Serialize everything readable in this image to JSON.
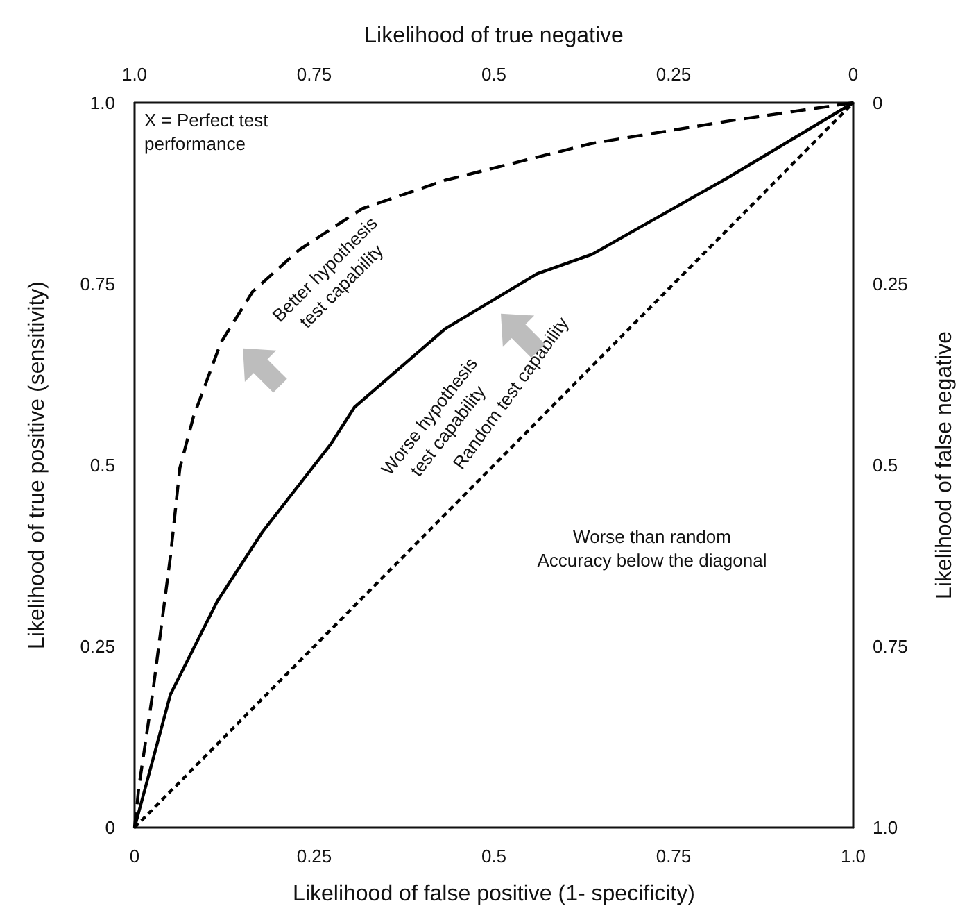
{
  "chart_data": {
    "type": "line",
    "xlabel": "Likelihood of false positive (1- specificity)",
    "ylabel": "Likelihood of true positive (sensitivity)",
    "x2label": "Likelihood of true negative",
    "y2label": "Likelihood of false negative",
    "xlim": [
      0,
      1
    ],
    "xticks": [
      0,
      0.25,
      0.5,
      0.75,
      {
        "value": 1,
        "label": "1.0"
      }
    ],
    "ylim": [
      0,
      1
    ],
    "yticks": [
      0,
      0.25,
      0.5,
      0.75,
      {
        "value": 1,
        "label": "1.0"
      }
    ],
    "x2lim": [
      1,
      0
    ],
    "x2ticks": [
      {
        "value": 1,
        "label": "1.0"
      },
      0.75,
      0.5,
      0.25,
      0
    ],
    "y2lim": [
      1,
      0
    ],
    "y2ticks": [
      0,
      0.25,
      0.5,
      0.75,
      {
        "value": 1,
        "label": "1.0"
      }
    ],
    "grid": false,
    "marker": "none",
    "series": [
      {
        "color": "#000000",
        "line_style": "dashed",
        "x": [
          0,
          0.006,
          0.025,
          0.05,
          0.063,
          0.082,
          0.12,
          0.164,
          0.229,
          0.317,
          0.432,
          0.637,
          0.828,
          1
        ],
        "values": [
          0,
          0.056,
          0.184,
          0.375,
          0.496,
          0.567,
          0.669,
          0.739,
          0.797,
          0.854,
          0.893,
          0.944,
          0.975,
          1
        ]
      },
      {
        "color": "#000000",
        "line_style": "solid",
        "x": [
          0,
          0.05,
          0.115,
          0.178,
          0.273,
          0.306,
          0.432,
          0.56,
          0.637,
          0.828,
          1
        ],
        "values": [
          0,
          0.184,
          0.312,
          0.408,
          0.529,
          0.58,
          0.688,
          0.764,
          0.791,
          0.898,
          1
        ]
      },
      {
        "color": "#000000",
        "line_style": "dotted",
        "x": [
          0,
          1
        ],
        "values": [
          0,
          1
        ]
      }
    ],
    "annotations": [
      "X = Perfect test\nperformance",
      "Better hypothesis\ntest capability",
      "Worse hypothesis\ntest capability",
      "Random test capability",
      "Worse than random\nAccuracy below the diagonal"
    ]
  }
}
